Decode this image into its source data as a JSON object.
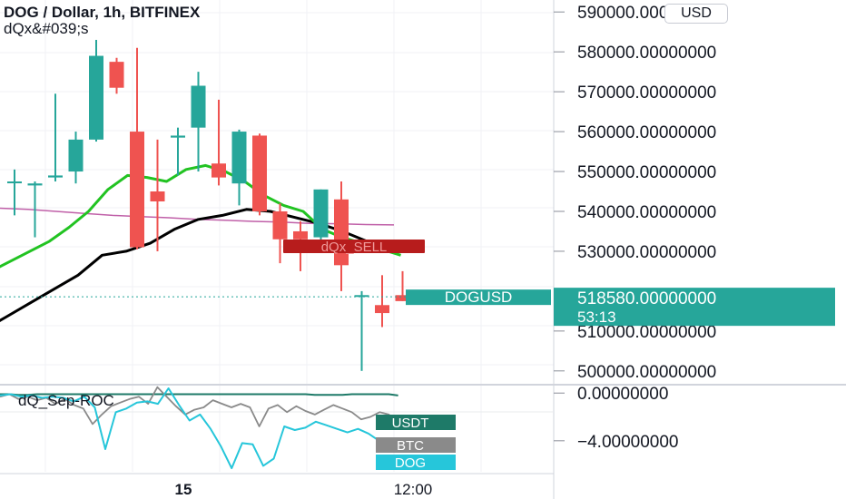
{
  "header": {
    "title": "DOG / Dollar, 1h, BITFINEX",
    "subtitle": "dQx&#039;s",
    "currency_button": "USD"
  },
  "colors": {
    "bull": "#26a69a",
    "bear": "#ef5350",
    "ema_fast": "#22c322",
    "ema_slow": "#000000",
    "sma": "#c060a8",
    "roc_usdt": "#1e7a68",
    "roc_btc": "#8a8a8a",
    "roc_dog": "#26c6da"
  },
  "price_axis": {
    "ticks": [
      "590000.00000000",
      "580000.00000000",
      "570000.00000000",
      "560000.00000000",
      "550000.00000000",
      "540000.00000000",
      "530000.00000000",
      "510000.00000000",
      "500000.00000000"
    ],
    "current_symbol": "DOGUSD",
    "current_price": "518580.00000000",
    "countdown": "53:13"
  },
  "roc_axis": {
    "ticks": [
      "0.00000000",
      "−4.00000000"
    ]
  },
  "time_axis": {
    "ticks": [
      "15",
      "12:00"
    ]
  },
  "chart_data": [
    {
      "type": "candlestick",
      "title": "DOG / Dollar, 1h, BITFINEX",
      "ylim": [
        497000,
        593000
      ],
      "candles": [
        {
          "o": 547500,
          "h": 550500,
          "l": 539000,
          "c": 547500
        },
        {
          "o": 546500,
          "h": 547500,
          "l": 533500,
          "c": 547000
        },
        {
          "o": 548500,
          "h": 569500,
          "l": 547500,
          "c": 549000
        },
        {
          "o": 550000,
          "h": 560000,
          "l": 547000,
          "c": 558000
        },
        {
          "o": 558000,
          "h": 583000,
          "l": 557500,
          "c": 579000
        },
        {
          "o": 577500,
          "h": 578500,
          "l": 569500,
          "c": 571000
        },
        {
          "o": 560000,
          "h": 581000,
          "l": 530500,
          "c": 531000
        },
        {
          "o": 545000,
          "h": 558000,
          "l": 530000,
          "c": 542500
        },
        {
          "o": 558500,
          "h": 561000,
          "l": 549000,
          "c": 559000
        },
        {
          "o": 561000,
          "h": 575000,
          "l": 550000,
          "c": 571500
        },
        {
          "o": 552000,
          "h": 568000,
          "l": 546500,
          "c": 548500
        },
        {
          "o": 547000,
          "h": 560500,
          "l": 541500,
          "c": 560000
        },
        {
          "o": 559000,
          "h": 559500,
          "l": 539000,
          "c": 540000
        },
        {
          "o": 540000,
          "h": 542000,
          "l": 527000,
          "c": 533000
        },
        {
          "o": 535000,
          "h": 537500,
          "l": 525000,
          "c": 533000
        },
        {
          "o": 533500,
          "h": 545500,
          "l": 531500,
          "c": 545500
        },
        {
          "o": 543000,
          "h": 547500,
          "l": 520000,
          "c": 526500
        },
        {
          "o": 519000,
          "h": 520000,
          "l": 500000,
          "c": 519000
        },
        {
          "o": 516500,
          "h": 524000,
          "l": 511000,
          "c": 514500
        },
        {
          "o": 519000,
          "h": 525000,
          "l": 517500,
          "c": 517500
        }
      ],
      "current_price": 518580,
      "series": [
        {
          "values": [
            525000,
            527500,
            530000,
            532500,
            536000,
            540000,
            545500,
            549000,
            548500,
            547500,
            550500,
            551500,
            550000,
            547500,
            544000,
            541500,
            540000,
            535500,
            533500,
            532000,
            530500,
            529000
          ]
        },
        {
          "values": [
            510000,
            513500,
            517000,
            520500,
            524000,
            529000,
            530000,
            532000,
            535500,
            538000,
            539000,
            540500,
            540000,
            538500,
            537000,
            535000,
            532500,
            530500
          ]
        },
        {
          "values": [
            540800,
            540500,
            540000,
            539500,
            539000,
            538700,
            538400,
            538000,
            537800,
            537500,
            537300,
            537000,
            536900,
            536700,
            536600
          ]
        }
      ]
    },
    {
      "type": "line",
      "title": "dQ_Sep-ROC",
      "ylim": [
        -6.6,
        0.55
      ],
      "series": [
        {
          "name": "USDT",
          "values": [
            -0.1,
            -0.1,
            -0.15,
            -0.15,
            -0.1,
            -0.1,
            -0.1,
            -0.1,
            -0.1,
            -0.1,
            -0.1,
            -0.1,
            -0.1,
            -0.1,
            -0.1,
            -0.1,
            -0.1,
            -0.1,
            -0.1,
            -0.1,
            -0.1,
            -0.1,
            -0.1,
            -0.1,
            -0.1,
            -0.1,
            -0.1,
            -0.1,
            -0.1,
            -0.1,
            -0.1,
            -0.1,
            -0.1,
            -0.1,
            -0.15,
            -0.15,
            -0.15,
            -0.15,
            -0.1,
            -0.1,
            -0.1,
            -0.1,
            -0.1,
            -0.2
          ]
        },
        {
          "name": "BTC",
          "values": [
            -0.3,
            -0.1,
            -0.5,
            -0.3,
            -0.6,
            -0.4,
            -0.9,
            -0.5,
            -1.0,
            -1.3,
            -2.6,
            -1.8,
            -1.1,
            -0.8,
            -0.5,
            -0.3,
            -0.9,
            0.5,
            -0.3,
            -1.1,
            -1.8,
            -1.4,
            -1.2,
            -0.6,
            -0.9,
            -1.2,
            -0.9,
            -1.2,
            -2.8,
            -1.3,
            -1.0,
            -1.6,
            -1.1,
            -1.5,
            -1.8,
            -1.4,
            -1.0,
            -1.3,
            -1.6,
            -2.2,
            -2.0,
            -1.6,
            -1.8,
            -2.5
          ]
        },
        {
          "name": "DOG",
          "values": [
            -0.2,
            -0.1,
            -0.3,
            -0.2,
            -0.4,
            -0.3,
            -0.4,
            -0.7,
            -0.3,
            -1.2,
            -4.7,
            -1.6,
            -1.3,
            -0.8,
            -0.7,
            -0.9,
            0.4,
            -1.0,
            -2.3,
            -1.8,
            -3.0,
            -4.5,
            -6.3,
            -4.2,
            -4.3,
            -6.1,
            -5.5,
            -2.8,
            -3.1,
            -2.9,
            -2.4,
            -2.7,
            -3.0,
            -3.3,
            -3.0,
            -3.4,
            -4.0
          ]
        }
      ]
    }
  ]
}
